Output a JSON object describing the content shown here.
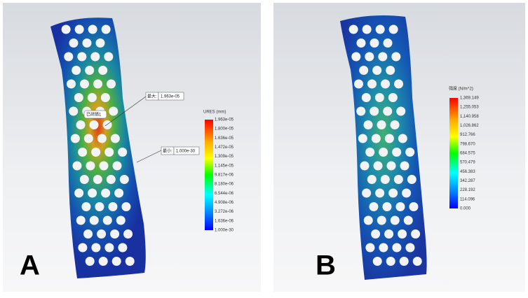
{
  "panel_a": {
    "label": "A",
    "legend_title": "URES (mm)",
    "legend_ticks": [
      "1.963e-05",
      "1.800e-05",
      "1.636e-05",
      "1.472e-05",
      "1.309e-05",
      "1.145e-05",
      "9.817e-06",
      "8.180e-06",
      "6.544e-06",
      "4.908e-06",
      "3.272e-06",
      "1.636e-06",
      "1.000e-30"
    ],
    "max_label": "最大:",
    "max_value": "1.963e-05",
    "min_label": "最小:",
    "min_value": "1.000e-30",
    "probe_label": "已研随1"
  },
  "panel_b": {
    "label": "B",
    "legend_title": "强度 (N/m^2)",
    "legend_ticks": [
      "1,369.149",
      "1,255.053",
      "1,140.958",
      "1,026.862",
      "912.766",
      "798.670",
      "684.575",
      "570.479",
      "456.383",
      "342.287",
      "228.192",
      "114.096",
      "0.000"
    ]
  }
}
